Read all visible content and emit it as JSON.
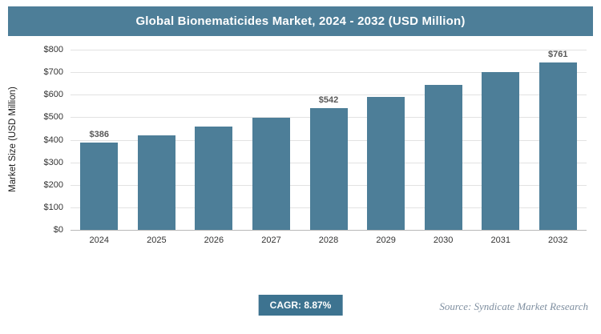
{
  "header": {
    "title": "Global Bionematicides Market, 2024 - 2032 (USD Million)"
  },
  "footer": {
    "cagr_label": "CAGR: 8.87%",
    "source": "Source: Syndicate Market Research"
  },
  "colors": {
    "header_bg": "#4d7e98",
    "bar": "#4d7e98",
    "badge_bg": "#3d7390",
    "source_text": "#7f8fa0"
  },
  "chart_data": {
    "type": "bar",
    "title": "Global Bionematicides Market, 2024 - 2032 (USD Million)",
    "ylabel": "Market Size (USD Million)",
    "xlabel": "",
    "categories": [
      "2024",
      "2025",
      "2026",
      "2027",
      "2028",
      "2029",
      "2030",
      "2031",
      "2032"
    ],
    "values": [
      386,
      420,
      457,
      498,
      542,
      590,
      642,
      699,
      761
    ],
    "bar_labels": [
      "$386",
      null,
      null,
      null,
      "$542",
      null,
      null,
      null,
      "$761"
    ],
    "ylim": [
      0,
      800
    ],
    "ytick_values": [
      0,
      100,
      200,
      300,
      400,
      500,
      600,
      700,
      800
    ],
    "ytick_labels": [
      "$0",
      "$100",
      "$200",
      "$300",
      "$400",
      "$500",
      "$600",
      "$700",
      "$800"
    ],
    "grid": true,
    "legend": "none"
  }
}
